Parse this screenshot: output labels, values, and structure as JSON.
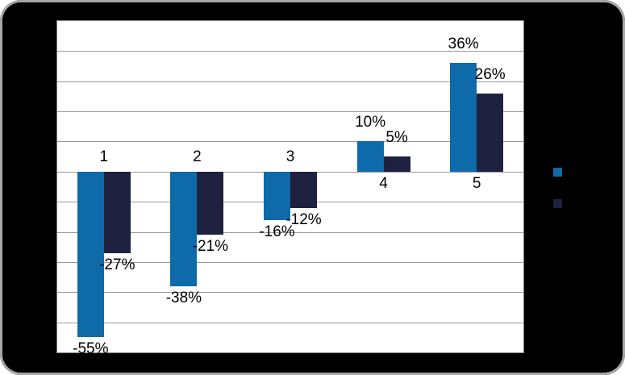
{
  "frame": {
    "background": "#000000",
    "border_color": "#a6a6a6"
  },
  "chart_data": {
    "type": "bar",
    "title": "",
    "categories": [
      "1",
      "2",
      "3",
      "4",
      "5"
    ],
    "series": [
      {
        "color": "#0e6aa8",
        "values": [
          -55,
          -38,
          -16,
          10,
          36
        ],
        "labels": [
          "-55%",
          "-38%",
          "-16%",
          "10%",
          "36%"
        ]
      },
      {
        "color": "#1e2240",
        "values": [
          -27,
          -21,
          -12,
          5,
          26
        ],
        "labels": [
          "-27%",
          "-21%",
          "-12%",
          "5%",
          "26%"
        ]
      }
    ],
    "ylim": [
      -60,
      50
    ],
    "grid_step": 10,
    "grid": true,
    "gridline_color": "#9a9a9a",
    "plot_background": "#ffffff",
    "plot_border_color": "#7f7f7f",
    "label_color": "#000000",
    "legend_position": "right",
    "legend_text_visible": false
  }
}
